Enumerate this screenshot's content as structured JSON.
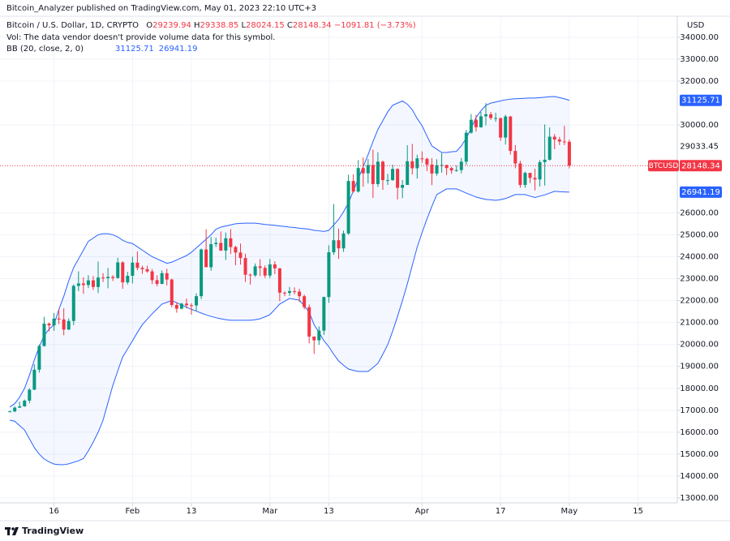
{
  "header": {
    "publisher": "Bitcoin_Analyzer published on TradingView.com, May 01, 2023 22:10 UTC+3"
  },
  "footer": "TradingView",
  "chart_data": {
    "type": "candlestick",
    "title": "Bitcoin / U.S. Dollar, 1D, CRYPTO",
    "ohlc_labels": [
      "O",
      "H",
      "L",
      "C"
    ],
    "change_label": "−1091.81 (−3.73%)",
    "volume_note": "Vol: The data vendor doesn't provide volume data for this symbol.",
    "currency": "USD",
    "symbol": "BTCUSD",
    "up_color": "#089981",
    "down_color": "#f23645",
    "x": [
      "2023-01-07",
      "2023-01-08",
      "2023-01-09",
      "2023-01-10",
      "2023-01-11",
      "2023-01-12",
      "2023-01-13",
      "2023-01-14",
      "2023-01-15",
      "2023-01-16",
      "2023-01-17",
      "2023-01-18",
      "2023-01-19",
      "2023-01-20",
      "2023-01-21",
      "2023-01-22",
      "2023-01-23",
      "2023-01-24",
      "2023-01-25",
      "2023-01-26",
      "2023-01-27",
      "2023-01-28",
      "2023-01-29",
      "2023-01-30",
      "2023-01-31",
      "2023-02-01",
      "2023-02-02",
      "2023-02-03",
      "2023-02-04",
      "2023-02-05",
      "2023-02-06",
      "2023-02-07",
      "2023-02-08",
      "2023-02-09",
      "2023-02-10",
      "2023-02-11",
      "2023-02-12",
      "2023-02-13",
      "2023-02-14",
      "2023-02-15",
      "2023-02-16",
      "2023-02-17",
      "2023-02-18",
      "2023-02-19",
      "2023-02-20",
      "2023-02-21",
      "2023-02-22",
      "2023-02-23",
      "2023-02-24",
      "2023-02-25",
      "2023-02-26",
      "2023-02-27",
      "2023-02-28",
      "2023-03-01",
      "2023-03-02",
      "2023-03-03",
      "2023-03-04",
      "2023-03-05",
      "2023-03-06",
      "2023-03-07",
      "2023-03-08",
      "2023-03-09",
      "2023-03-10",
      "2023-03-11",
      "2023-03-12",
      "2023-03-13",
      "2023-03-14",
      "2023-03-15",
      "2023-03-16",
      "2023-03-17",
      "2023-03-18",
      "2023-03-19",
      "2023-03-20",
      "2023-03-21",
      "2023-03-22",
      "2023-03-23",
      "2023-03-24",
      "2023-03-25",
      "2023-03-26",
      "2023-03-27",
      "2023-03-28",
      "2023-03-29",
      "2023-03-30",
      "2023-03-31",
      "2023-04-01",
      "2023-04-02",
      "2023-04-03",
      "2023-04-04",
      "2023-04-05",
      "2023-04-06",
      "2023-04-07",
      "2023-04-08",
      "2023-04-09",
      "2023-04-10",
      "2023-04-11",
      "2023-04-12",
      "2023-04-13",
      "2023-04-14",
      "2023-04-15",
      "2023-04-16",
      "2023-04-17",
      "2023-04-18",
      "2023-04-19",
      "2023-04-20",
      "2023-04-21",
      "2023-04-22",
      "2023-04-23",
      "2023-04-24",
      "2023-04-25",
      "2023-04-26",
      "2023-04-27",
      "2023-04-28",
      "2023-04-29",
      "2023-04-30",
      "2023-05-01"
    ],
    "open": [
      16940,
      16950,
      17120,
      17180,
      17440,
      17940,
      18850,
      19930,
      20950,
      20870,
      21180,
      21140,
      20680,
      21070,
      22670,
      22780,
      22710,
      22920,
      22620,
      23050,
      23020,
      23080,
      23030,
      23740,
      22830,
      23130,
      23730,
      23490,
      23430,
      23330,
      22930,
      22760,
      23250,
      22960,
      21800,
      21630,
      21860,
      21790,
      21780,
      22200,
      24330,
      23520,
      24570,
      24630,
      24280,
      24840,
      24440,
      24190,
      23940,
      23180,
      23150,
      23560,
      23490,
      23140,
      23650,
      23470,
      22360,
      22350,
      22430,
      22410,
      22200,
      21700,
      20360,
      20190,
      20630,
      22160,
      24200,
      24750,
      24380,
      25060,
      27450,
      26970,
      28040,
      27800,
      28180,
      27310,
      28330,
      27490,
      27490,
      28000,
      27140,
      27270,
      28350,
      28030,
      28480,
      28460,
      28200,
      27790,
      28170,
      28180,
      28040,
      27930,
      27950,
      28330,
      29650,
      30240,
      29900,
      30400,
      30490,
      30320,
      30320,
      29430,
      30390,
      28820,
      28250,
      27270,
      27820,
      27590,
      27520,
      28310,
      28420,
      29470,
      29340,
      29250,
      29239.94
    ],
    "high": [
      16990,
      17180,
      17390,
      17490,
      18000,
      19100,
      20000,
      21260,
      21000,
      21440,
      21620,
      21650,
      21190,
      22740,
      23330,
      23060,
      23160,
      23120,
      23780,
      23250,
      23490,
      23160,
      23950,
      23790,
      23310,
      24000,
      24240,
      23590,
      23590,
      23440,
      23150,
      23370,
      23450,
      23000,
      21930,
      21900,
      22090,
      21880,
      22330,
      24370,
      25250,
      24900,
      24870,
      25150,
      25100,
      25260,
      24500,
      24600,
      24140,
      23230,
      23690,
      23890,
      23600,
      23900,
      23790,
      23480,
      22420,
      22620,
      22600,
      22540,
      22270,
      21820,
      20370,
      20820,
      22180,
      24520,
      26400,
      25280,
      25190,
      27740,
      27750,
      28400,
      28520,
      28450,
      28880,
      28760,
      28380,
      27780,
      28190,
      28030,
      27490,
      29080,
      29140,
      28650,
      28800,
      28520,
      28490,
      28440,
      28720,
      28190,
      28100,
      28160,
      28500,
      29780,
      30500,
      30460,
      30600,
      31000,
      30600,
      30560,
      30330,
      30470,
      30410,
      29090,
      28370,
      27880,
      27820,
      28010,
      28400,
      30030,
      29890,
      29590,
      29460,
      29960,
      29338.85
    ],
    "low": [
      16910,
      16910,
      17110,
      17160,
      17320,
      17920,
      18720,
      19900,
      20600,
      20620,
      20930,
      20420,
      20660,
      20880,
      22430,
      22310,
      22570,
      22480,
      22340,
      22850,
      22560,
      22890,
      23000,
      22540,
      22740,
      22780,
      23380,
      23220,
      23270,
      22750,
      22650,
      22750,
      22690,
      21700,
      21450,
      21600,
      21640,
      21360,
      21530,
      22070,
      23520,
      23360,
      24440,
      24260,
      23850,
      24120,
      23610,
      23640,
      22850,
      22730,
      23080,
      23110,
      23030,
      23020,
      23200,
      21970,
      22200,
      22210,
      22280,
      21930,
      21600,
      20050,
      19570,
      19980,
      20430,
      21900,
      24080,
      23900,
      24220,
      25000,
      26920,
      26920,
      27190,
      27340,
      26680,
      27180,
      27050,
      27270,
      27460,
      26610,
      26670,
      27270,
      27750,
      27560,
      28280,
      27900,
      27260,
      27690,
      27830,
      27720,
      27780,
      27870,
      27800,
      28180,
      29610,
      29700,
      29880,
      29990,
      30230,
      30150,
      29280,
      29110,
      28650,
      28030,
      27140,
      27140,
      27360,
      27020,
      27200,
      27240,
      28380,
      28900,
      29090,
      29090,
      28024.15
    ],
    "close": [
      16950,
      17120,
      17180,
      17440,
      17940,
      18850,
      19930,
      20950,
      20870,
      21180,
      21140,
      20680,
      21070,
      22670,
      22780,
      22710,
      22920,
      22620,
      23050,
      23020,
      23080,
      23030,
      23740,
      22830,
      23130,
      23730,
      23490,
      23430,
      23330,
      22930,
      22760,
      23250,
      22960,
      21800,
      21630,
      21860,
      21790,
      21780,
      22200,
      24330,
      23520,
      24570,
      24630,
      24280,
      24840,
      24440,
      24190,
      23940,
      23180,
      23150,
      23560,
      23490,
      23140,
      23650,
      23470,
      22360,
      22350,
      22430,
      22410,
      22200,
      21700,
      20360,
      20190,
      20630,
      22160,
      24200,
      24750,
      24380,
      25060,
      27450,
      26970,
      28040,
      27800,
      28180,
      27310,
      28330,
      27490,
      27490,
      28000,
      27140,
      27270,
      28350,
      28030,
      28480,
      28460,
      28200,
      27790,
      28170,
      28180,
      28040,
      27930,
      27950,
      28330,
      29650,
      30240,
      29900,
      30400,
      30490,
      30320,
      30320,
      29430,
      30390,
      28820,
      28250,
      27270,
      27820,
      27590,
      27520,
      28310,
      28420,
      29470,
      29340,
      29250,
      29240,
      28148.34
    ],
    "bands": {
      "name": "BB (20, close, 2, 0)",
      "color": "#2962ff",
      "fill": "rgba(41,98,255,0.05)",
      "upper": [
        17150,
        17300,
        17600,
        18000,
        18600,
        19300,
        19900,
        20400,
        20700,
        20900,
        21600,
        22200,
        22900,
        23500,
        23900,
        24300,
        24700,
        24850,
        25000,
        25050,
        25050,
        25000,
        24900,
        24750,
        24650,
        24600,
        24450,
        24300,
        24150,
        24000,
        23900,
        23800,
        23700,
        23750,
        23850,
        23950,
        24050,
        24200,
        24400,
        24600,
        24800,
        25000,
        25250,
        25350,
        25400,
        25450,
        25500,
        25520,
        25530,
        25530,
        25530,
        25500,
        25470,
        25450,
        25430,
        25400,
        25380,
        25350,
        25330,
        25300,
        25280,
        25250,
        25200,
        25180,
        25150,
        25200,
        25450,
        25700,
        26050,
        26450,
        27000,
        27550,
        28100,
        28650,
        29250,
        29800,
        30200,
        30600,
        30900,
        31000,
        31100,
        30950,
        30700,
        30300,
        29970,
        29500,
        29050,
        28900,
        28750,
        28750,
        28780,
        28800,
        29050,
        29400,
        29850,
        30350,
        30650,
        30900,
        31000,
        31050,
        31100,
        31150,
        31180,
        31200,
        31210,
        31220,
        31230,
        31230,
        31250,
        31270,
        31290,
        31300,
        31250,
        31200,
        31125.71
      ],
      "lower": [
        16550,
        16500,
        16300,
        16100,
        15700,
        15300,
        15000,
        14780,
        14650,
        14550,
        14520,
        14520,
        14560,
        14630,
        14700,
        14800,
        15150,
        15550,
        16000,
        16550,
        17350,
        18140,
        18800,
        19430,
        19800,
        20170,
        20550,
        20900,
        21150,
        21400,
        21620,
        21840,
        21920,
        22000,
        21900,
        21800,
        21700,
        21600,
        21520,
        21430,
        21350,
        21280,
        21220,
        21170,
        21130,
        21100,
        21100,
        21100,
        21100,
        21100,
        21130,
        21170,
        21260,
        21360,
        21600,
        21840,
        21970,
        22100,
        22060,
        22020,
        21750,
        21470,
        20900,
        20550,
        20170,
        19900,
        19550,
        19250,
        19050,
        18880,
        18820,
        18770,
        18770,
        18770,
        18950,
        19140,
        19550,
        19990,
        20600,
        21280,
        22000,
        22760,
        23600,
        24430,
        25100,
        25720,
        26300,
        26830,
        26960,
        27090,
        27090,
        27090,
        27000,
        26900,
        26810,
        26720,
        26660,
        26610,
        26590,
        26570,
        26600,
        26650,
        26740,
        26830,
        26830,
        26830,
        26760,
        26700,
        26760,
        26820,
        26900,
        26980,
        26960,
        26950,
        26941.19
      ]
    },
    "crosshair_price": 29033.45,
    "xlim": [
      "2023-01-05",
      "2023-05-23"
    ],
    "xticks": [
      {
        "value": "2023-01-16",
        "label": "16"
      },
      {
        "value": "2023-02-01",
        "label": "Feb"
      },
      {
        "value": "2023-02-13",
        "label": "13"
      },
      {
        "value": "2023-03-01",
        "label": "Mar"
      },
      {
        "value": "2023-03-13",
        "label": "13"
      },
      {
        "value": "2023-04-01",
        "label": "Apr"
      },
      {
        "value": "2023-04-17",
        "label": "17"
      },
      {
        "value": "2023-05-01",
        "label": "May"
      },
      {
        "value": "2023-05-15",
        "label": "15"
      }
    ],
    "ylim": [
      12780,
      34960
    ],
    "yticks": [
      {
        "value": 13000,
        "label": "13000.00"
      },
      {
        "value": 14000,
        "label": "14000.00"
      },
      {
        "value": 15000,
        "label": "15000.00"
      },
      {
        "value": 16000,
        "label": "16000.00"
      },
      {
        "value": 17000,
        "label": "17000.00"
      },
      {
        "value": 18000,
        "label": "18000.00"
      },
      {
        "value": 19000,
        "label": "19000.00"
      },
      {
        "value": 20000,
        "label": "20000.00"
      },
      {
        "value": 21000,
        "label": "21000.00"
      },
      {
        "value": 22000,
        "label": "22000.00"
      },
      {
        "value": 23000,
        "label": "23000.00"
      },
      {
        "value": 24000,
        "label": "24000.00"
      },
      {
        "value": 25000,
        "label": "25000.00"
      },
      {
        "value": 26000,
        "label": "26000.00"
      },
      {
        "value": 30000,
        "label": "30000.00"
      },
      {
        "value": 32000,
        "label": "32000.00"
      },
      {
        "value": 33000,
        "label": "33000.00"
      },
      {
        "value": 34000,
        "label": "34000.00"
      }
    ],
    "grid": true
  }
}
